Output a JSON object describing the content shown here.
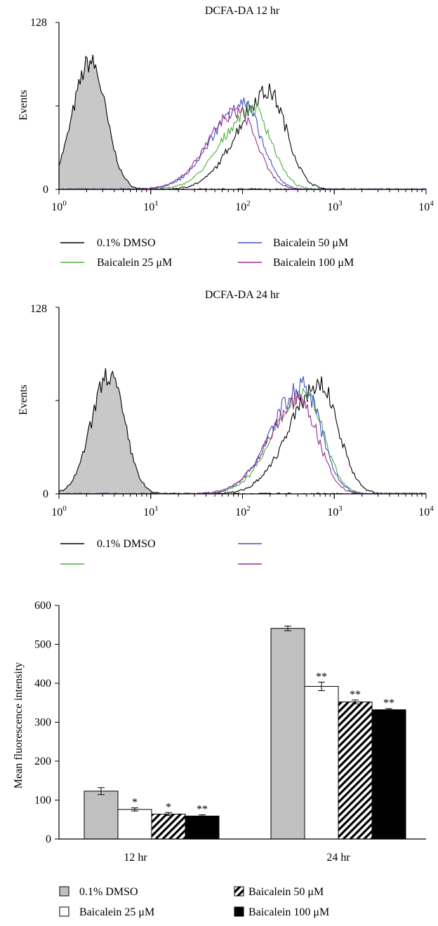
{
  "colors": {
    "dmso": "#000000",
    "b25": "#4caf3c",
    "b50": "#3f51c0",
    "b100": "#9b2c8e",
    "fill_gray": "#c8c8c8",
    "bar_gray": "#c0c0c0"
  },
  "chart_data": [
    {
      "type": "line",
      "title": "DCFA-DA 12 hr",
      "ylabel": "Events",
      "xscale": "log",
      "xlim": [
        1,
        10000
      ],
      "ylim": [
        0,
        128
      ],
      "yticks": [
        "0",
        "128"
      ],
      "xticks": [
        {
          "base": "10",
          "exp": "0"
        },
        {
          "base": "10",
          "exp": "1"
        },
        {
          "base": "10",
          "exp": "2"
        },
        {
          "base": "10",
          "exp": "3"
        },
        {
          "base": "10",
          "exp": "4"
        }
      ],
      "legend": [
        "0.1% DMSO",
        "Baicalein 25 μM",
        "Baicalein 50 μM",
        "Baicalein 100 μM"
      ],
      "control_peak": {
        "x": 2.2,
        "y": 98
      },
      "series": [
        {
          "name": "0.1% DMSO",
          "peak_x": 190,
          "peak_y": 75
        },
        {
          "name": "Baicalein 25 μM",
          "peak_x": 130,
          "peak_y": 62
        },
        {
          "name": "Baicalein 50 μM",
          "peak_x": 100,
          "peak_y": 66
        },
        {
          "name": "Baicalein 100 μM",
          "peak_x": 90,
          "peak_y": 60
        }
      ]
    },
    {
      "type": "line",
      "title": "DCFA-DA 24 hr",
      "ylabel": "Events",
      "xscale": "log",
      "xlim": [
        1,
        10000
      ],
      "ylim": [
        0,
        128
      ],
      "yticks": [
        "0",
        "128"
      ],
      "xticks": [
        {
          "base": "10",
          "exp": "0"
        },
        {
          "base": "10",
          "exp": "1"
        },
        {
          "base": "10",
          "exp": "2"
        },
        {
          "base": "10",
          "exp": "3"
        },
        {
          "base": "10",
          "exp": "4"
        }
      ],
      "legend": [
        "0.1% DMSO",
        "",
        "",
        ""
      ],
      "control_peak": {
        "x": 3.5,
        "y": 82
      },
      "series": [
        {
          "name": "0.1% DMSO",
          "peak_x": 700,
          "peak_y": 75
        },
        {
          "name": "Baicalein 25 μM",
          "peak_x": 480,
          "peak_y": 70
        },
        {
          "name": "Baicalein 50 μM",
          "peak_x": 450,
          "peak_y": 74
        },
        {
          "name": "Baicalein 100 μM",
          "peak_x": 420,
          "peak_y": 64
        }
      ]
    },
    {
      "type": "bar",
      "ylabel": "Mean fluorescence intensity",
      "categories": [
        "12 hr",
        "24 hr"
      ],
      "ylim": [
        0,
        600
      ],
      "yticks": [
        "0",
        "100",
        "200",
        "300",
        "400",
        "500",
        "600"
      ],
      "series": [
        {
          "name": "0.1% DMSO",
          "values": [
            123,
            541
          ],
          "errors": [
            9,
            6
          ],
          "sig": [
            "",
            ""
          ]
        },
        {
          "name": "Baicalein 25 μM",
          "values": [
            76,
            392
          ],
          "errors": [
            4,
            11
          ],
          "sig": [
            "*",
            "**"
          ]
        },
        {
          "name": "Baicalein 50 μM",
          "values": [
            64,
            352
          ],
          "errors": [
            4,
            5
          ],
          "sig": [
            "*",
            "**"
          ]
        },
        {
          "name": "Baicalein 100 μM",
          "values": [
            59,
            332
          ],
          "errors": [
            3,
            3
          ],
          "sig": [
            "**",
            "**"
          ]
        }
      ],
      "legend": [
        "0.1% DMSO",
        "Baicalein 25 μM",
        "Baicalein 50 μM",
        "Baicalein 100 μM"
      ]
    }
  ]
}
